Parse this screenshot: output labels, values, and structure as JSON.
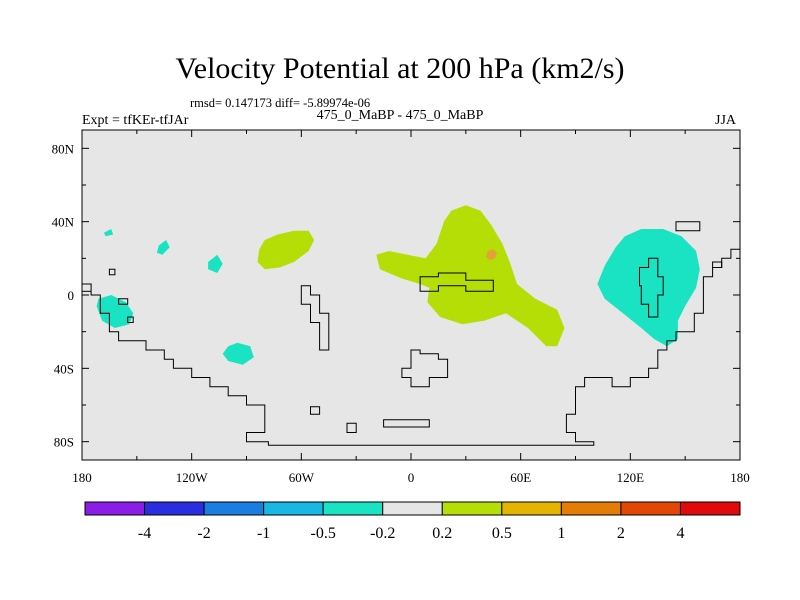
{
  "header": {
    "title": "Velocity Potential at 200 hPa (km2/s)",
    "stats": "rmsd= 0.147173 diff= -5.89974e-06",
    "expt": "Expt = tfKEr-tfJAr",
    "subtitle": "475_0_MaBP - 475_0_MaBP",
    "season": "JJA"
  },
  "chart_data": {
    "type": "map-contour",
    "title": "Velocity Potential at 200 hPa (km2/s)",
    "xlim": [
      -180,
      180
    ],
    "ylim": [
      -90,
      90
    ],
    "x_ticks": [
      {
        "value": -180,
        "label": "180"
      },
      {
        "value": -120,
        "label": "120W"
      },
      {
        "value": -60,
        "label": "60W"
      },
      {
        "value": 0,
        "label": "0"
      },
      {
        "value": 60,
        "label": "60E"
      },
      {
        "value": 120,
        "label": "120E"
      },
      {
        "value": 180,
        "label": "180"
      }
    ],
    "y_ticks": [
      {
        "value": 80,
        "label": "80N"
      },
      {
        "value": 40,
        "label": "40N"
      },
      {
        "value": 0,
        "label": "0"
      },
      {
        "value": -40,
        "label": "40S"
      },
      {
        "value": -80,
        "label": "80S"
      }
    ],
    "background_color": "#e6e6e6",
    "colorbar": {
      "levels": [
        "-4",
        "-2",
        "-1",
        "-0.5",
        "-0.2",
        "0.2",
        "0.5",
        "1",
        "2",
        "4"
      ],
      "colors": [
        "#8a1ee6",
        "#2a2ee0",
        "#1a7ee0",
        "#19b7e3",
        "#19e3c2",
        "#e6e6e6",
        "#b5dd06",
        "#e3b400",
        "#e37d06",
        "#e34706",
        "#e00a0a"
      ]
    },
    "regions": [
      {
        "label": "0.2 to 0.5",
        "color": "#b5dd06",
        "points": [
          [
            -80,
            30
          ],
          [
            -73,
            33
          ],
          [
            -64,
            35
          ],
          [
            -56,
            35
          ],
          [
            -53,
            30
          ],
          [
            -56,
            24
          ],
          [
            -64,
            18
          ],
          [
            -72,
            15
          ],
          [
            -80,
            14
          ],
          [
            -84,
            18
          ],
          [
            -83,
            25
          ]
        ]
      },
      {
        "label": "0.2 to 0.5",
        "color": "#b5dd06",
        "points": [
          [
            18,
            40
          ],
          [
            22,
            46
          ],
          [
            30,
            49
          ],
          [
            38,
            46
          ],
          [
            44,
            38
          ],
          [
            50,
            28
          ],
          [
            54,
            18
          ],
          [
            58,
            6
          ],
          [
            68,
            -2
          ],
          [
            80,
            -8
          ],
          [
            84,
            -18
          ],
          [
            80,
            -28
          ],
          [
            74,
            -28
          ],
          [
            64,
            -18
          ],
          [
            52,
            -10
          ],
          [
            40,
            -14
          ],
          [
            28,
            -16
          ],
          [
            16,
            -12
          ],
          [
            9,
            -4
          ],
          [
            10,
            4
          ],
          [
            5,
            6
          ],
          [
            -5,
            9
          ],
          [
            -17,
            14
          ],
          [
            -19,
            22
          ],
          [
            -12,
            24
          ],
          [
            -2,
            22
          ],
          [
            8,
            20
          ],
          [
            14,
            28
          ]
        ]
      },
      {
        "label": "1 to 2",
        "color": "#e3a13a",
        "points": [
          [
            42,
            24
          ],
          [
            45,
            25
          ],
          [
            47,
            23
          ],
          [
            46,
            20
          ],
          [
            43,
            19
          ],
          [
            41,
            21
          ]
        ]
      },
      {
        "label": "-0.5 to -0.2",
        "color": "#19e3c2",
        "points": [
          [
            117,
            32
          ],
          [
            126,
            36
          ],
          [
            138,
            36
          ],
          [
            148,
            32
          ],
          [
            156,
            24
          ],
          [
            158,
            14
          ],
          [
            156,
            4
          ],
          [
            150,
            -6
          ],
          [
            146,
            -14
          ],
          [
            146,
            -24
          ],
          [
            140,
            -28
          ],
          [
            133,
            -24
          ],
          [
            126,
            -18
          ],
          [
            116,
            -10
          ],
          [
            106,
            -2
          ],
          [
            102,
            6
          ],
          [
            106,
            16
          ],
          [
            112,
            26
          ]
        ]
      },
      {
        "label": "-0.5 to -0.2",
        "color": "#19e3c2",
        "points": [
          [
            -171,
            -2
          ],
          [
            -164,
            0
          ],
          [
            -156,
            -4
          ],
          [
            -152,
            -10
          ],
          [
            -154,
            -16
          ],
          [
            -162,
            -18
          ],
          [
            -169,
            -14
          ],
          [
            -172,
            -6
          ]
        ]
      },
      {
        "label": "-0.5 to -0.2",
        "color": "#19e3c2",
        "points": [
          [
            -100,
            -28
          ],
          [
            -95,
            -26
          ],
          [
            -88,
            -28
          ],
          [
            -86,
            -34
          ],
          [
            -92,
            -38
          ],
          [
            -100,
            -36
          ],
          [
            -103,
            -32
          ]
        ]
      },
      {
        "label": "-0.5 to -0.2",
        "color": "#19e3c2",
        "points": [
          [
            -138,
            27
          ],
          [
            -134,
            30
          ],
          [
            -132,
            26
          ],
          [
            -136,
            22
          ],
          [
            -139,
            23
          ]
        ]
      },
      {
        "label": "-0.5 to -0.2",
        "color": "#19e3c2",
        "points": [
          [
            -111,
            18
          ],
          [
            -106,
            22
          ],
          [
            -103,
            17
          ],
          [
            -106,
            12
          ],
          [
            -111,
            14
          ]
        ]
      },
      {
        "label": "-0.5 to -0.2",
        "color": "#19e3c2",
        "points": [
          [
            -168,
            34
          ],
          [
            -164,
            36
          ],
          [
            -163,
            33
          ],
          [
            -167,
            32
          ]
        ]
      }
    ],
    "coastlines": [
      {
        "closed": false,
        "points": [
          [
            -180,
            6
          ],
          [
            -175,
            6
          ],
          [
            -175,
            0
          ],
          [
            -170,
            0
          ],
          [
            -170,
            -10
          ],
          [
            -165,
            -10
          ],
          [
            -165,
            -20
          ],
          [
            -160,
            -20
          ],
          [
            -160,
            -25
          ],
          [
            -145,
            -25
          ],
          [
            -145,
            -30
          ],
          [
            -135,
            -30
          ],
          [
            -135,
            -35
          ],
          [
            -130,
            -35
          ],
          [
            -130,
            -40
          ],
          [
            -120,
            -40
          ],
          [
            -120,
            -45
          ],
          [
            -110,
            -45
          ],
          [
            -110,
            -50
          ],
          [
            -100,
            -50
          ],
          [
            -100,
            -55
          ],
          [
            -90,
            -55
          ],
          [
            -90,
            -60
          ],
          [
            -80,
            -60
          ],
          [
            -80,
            -75
          ],
          [
            -90,
            -75
          ],
          [
            -90,
            -80
          ],
          [
            -78,
            -80
          ],
          [
            -78,
            -82
          ],
          [
            100,
            -82
          ],
          [
            100,
            -80
          ],
          [
            90,
            -80
          ],
          [
            90,
            -75
          ],
          [
            85,
            -75
          ],
          [
            85,
            -65
          ],
          [
            90,
            -65
          ],
          [
            90,
            -50
          ],
          [
            95,
            -50
          ],
          [
            95,
            -45
          ],
          [
            110,
            -45
          ],
          [
            110,
            -50
          ],
          [
            120,
            -50
          ],
          [
            120,
            -45
          ],
          [
            130,
            -45
          ],
          [
            130,
            -40
          ],
          [
            135,
            -40
          ],
          [
            135,
            -30
          ],
          [
            140,
            -30
          ],
          [
            140,
            -25
          ],
          [
            145,
            -25
          ],
          [
            145,
            -20
          ],
          [
            155,
            -20
          ],
          [
            155,
            -10
          ],
          [
            160,
            -10
          ],
          [
            160,
            10
          ],
          [
            165,
            10
          ],
          [
            165,
            15
          ],
          [
            170,
            15
          ],
          [
            170,
            20
          ],
          [
            175,
            20
          ],
          [
            175,
            25
          ],
          [
            180,
            25
          ]
        ]
      },
      {
        "closed": false,
        "points": [
          [
            -180,
            2
          ],
          [
            -175,
            2
          ]
        ]
      },
      {
        "closed": true,
        "points": [
          [
            -160,
            -2
          ],
          [
            -160,
            -5
          ],
          [
            -155,
            -5
          ],
          [
            -155,
            -2
          ]
        ]
      },
      {
        "closed": true,
        "points": [
          [
            -155,
            -12
          ],
          [
            -155,
            -15
          ],
          [
            -152,
            -15
          ],
          [
            -152,
            -12
          ]
        ]
      },
      {
        "closed": true,
        "points": [
          [
            -165,
            14
          ],
          [
            -165,
            11
          ],
          [
            -162,
            11
          ],
          [
            -162,
            14
          ]
        ]
      },
      {
        "closed": true,
        "points": [
          [
            -35,
            -70
          ],
          [
            -35,
            -75
          ],
          [
            -30,
            -75
          ],
          [
            -30,
            -70
          ]
        ]
      },
      {
        "closed": true,
        "points": [
          [
            -55,
            -61
          ],
          [
            -55,
            -65
          ],
          [
            -50,
            -65
          ],
          [
            -50,
            -61
          ]
        ]
      },
      {
        "closed": true,
        "points": [
          [
            -15,
            -68
          ],
          [
            -15,
            -72
          ],
          [
            10,
            -72
          ],
          [
            10,
            -68
          ]
        ]
      },
      {
        "closed": true,
        "points": [
          [
            -60,
            -5
          ],
          [
            -55,
            -5
          ],
          [
            -55,
            -15
          ],
          [
            -50,
            -15
          ],
          [
            -50,
            -30
          ],
          [
            -45,
            -30
          ],
          [
            -45,
            -10
          ],
          [
            -50,
            -10
          ],
          [
            -50,
            0
          ],
          [
            -55,
            0
          ],
          [
            -55,
            5
          ],
          [
            -60,
            5
          ]
        ]
      },
      {
        "closed": true,
        "points": [
          [
            0,
            -30
          ],
          [
            5,
            -30
          ],
          [
            5,
            -32
          ],
          [
            15,
            -32
          ],
          [
            15,
            -35
          ],
          [
            20,
            -35
          ],
          [
            20,
            -45
          ],
          [
            10,
            -45
          ],
          [
            10,
            -50
          ],
          [
            0,
            -50
          ],
          [
            0,
            -45
          ],
          [
            -5,
            -45
          ],
          [
            -5,
            -40
          ],
          [
            0,
            -40
          ]
        ]
      },
      {
        "closed": true,
        "points": [
          [
            5,
            10
          ],
          [
            15,
            10
          ],
          [
            15,
            12
          ],
          [
            30,
            12
          ],
          [
            30,
            8
          ],
          [
            45,
            8
          ],
          [
            45,
            2
          ],
          [
            30,
            2
          ],
          [
            30,
            5
          ],
          [
            15,
            5
          ],
          [
            15,
            2
          ],
          [
            5,
            2
          ]
        ]
      },
      {
        "closed": true,
        "points": [
          [
            125,
            15
          ],
          [
            130,
            15
          ],
          [
            130,
            20
          ],
          [
            135,
            20
          ],
          [
            135,
            10
          ],
          [
            138,
            10
          ],
          [
            138,
            0
          ],
          [
            135,
            0
          ],
          [
            135,
            -12
          ],
          [
            130,
            -12
          ],
          [
            130,
            -5
          ],
          [
            126,
            -5
          ],
          [
            126,
            5
          ],
          [
            125,
            5
          ]
        ]
      },
      {
        "closed": true,
        "points": [
          [
            145,
            40
          ],
          [
            158,
            40
          ],
          [
            158,
            35
          ],
          [
            145,
            35
          ]
        ]
      },
      {
        "closed": true,
        "points": [
          [
            165,
            18
          ],
          [
            170,
            18
          ],
          [
            170,
            15
          ],
          [
            165,
            15
          ]
        ]
      }
    ]
  }
}
